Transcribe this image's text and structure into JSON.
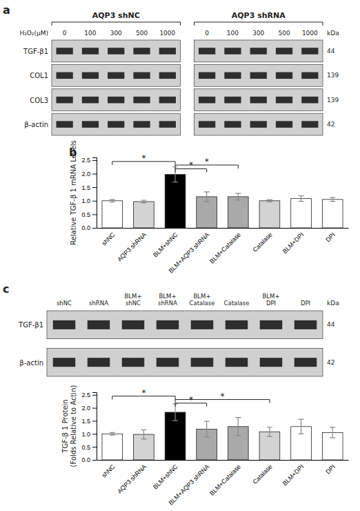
{
  "chart_data": [
    {
      "type": "blot",
      "title": "a",
      "group_labels": [
        "AQP3 shNC",
        "AQP3 shRNA"
      ],
      "lane_label": "H₂O₂(μM)",
      "lanes": [
        0,
        100,
        300,
        500,
        1000
      ],
      "row_labels": [
        "TGF-β1",
        "COL1",
        "COL3",
        "β-actin"
      ],
      "kda_values": [
        44,
        139,
        139,
        42
      ],
      "kda_label": "kDa"
    },
    {
      "type": "bar",
      "title": "b",
      "categories": [
        "shNC",
        "AQP3 shRNA",
        "BLM+shNC",
        "BLM+AQP3 shRNA",
        "BLM+Catalase",
        "Catalase",
        "BLM+DPI",
        "DPI"
      ],
      "values": [
        1.0,
        0.97,
        1.97,
        1.15,
        1.15,
        1.0,
        1.08,
        1.05
      ],
      "errors": [
        0.05,
        0.05,
        0.28,
        0.18,
        0.12,
        0.04,
        0.1,
        0.07
      ],
      "ylabel": "Relative TGF-β 1 mRNA Levels",
      "ylim": [
        0.0,
        2.6
      ],
      "yticks": [
        {
          "value": 0.0,
          "label": "0.0"
        },
        0.5,
        {
          "value": 1.0,
          "label": "1.0"
        },
        1.5,
        {
          "value": 2.0,
          "label": "2.0"
        },
        2.5
      ],
      "colors": [
        "white",
        "lightgray",
        "black",
        "darkgray",
        "darkgray",
        "lightgray",
        "white",
        "white"
      ],
      "annotations": [
        {
          "x1": 0,
          "x2": 2,
          "y": 2.45,
          "label": "*"
        },
        {
          "x1": 2,
          "x2": 3,
          "y": 2.18,
          "label": "*"
        },
        {
          "x1": 2,
          "x2": 4,
          "y": 2.32,
          "label": "*"
        }
      ]
    },
    {
      "type": "blot",
      "title": "c",
      "lanes": [
        "shNC",
        "shRNA",
        "BLM+\nshNC",
        "BLM+\nshRNA",
        "BLM+\nCatalase",
        "Catalase",
        "BLM+\nDPI",
        "DPI"
      ],
      "row_labels": [
        "TGF-β1",
        "β-actin"
      ],
      "kda_values": [
        44,
        42
      ],
      "kda_label": "kDa"
    },
    {
      "type": "bar",
      "categories": [
        "shNC",
        "AQP3 shRNA",
        "BLM+shNC",
        "BLM+AQP3 shRNA",
        "BLM+Catalase",
        "Catalase",
        "BLM+DPI",
        "DPI"
      ],
      "values": [
        1.0,
        0.98,
        1.83,
        1.18,
        1.28,
        1.08,
        1.28,
        1.05
      ],
      "errors": [
        0.05,
        0.18,
        0.32,
        0.3,
        0.35,
        0.18,
        0.28,
        0.2
      ],
      "ylabel": "TGF-β 1 Protein\n(Folds Relative to Actin)",
      "ylim": [
        0.0,
        2.6
      ],
      "yticks": [
        {
          "value": 0.0,
          "label": "0.0"
        },
        0.5,
        {
          "value": 1.0,
          "label": "1.0"
        },
        1.5,
        {
          "value": 2.0,
          "label": "2.0"
        },
        2.5
      ],
      "colors": [
        "white",
        "lightgray",
        "black",
        "darkgray",
        "darkgray",
        "lightgray",
        "white",
        "white"
      ],
      "annotations": [
        {
          "x1": 0,
          "x2": 2,
          "y": 2.45,
          "label": "*"
        },
        {
          "x1": 2,
          "x2": 3,
          "y": 2.18,
          "label": "*"
        },
        {
          "x1": 2,
          "x2": 5,
          "y": 2.32,
          "label": "*"
        }
      ]
    }
  ]
}
